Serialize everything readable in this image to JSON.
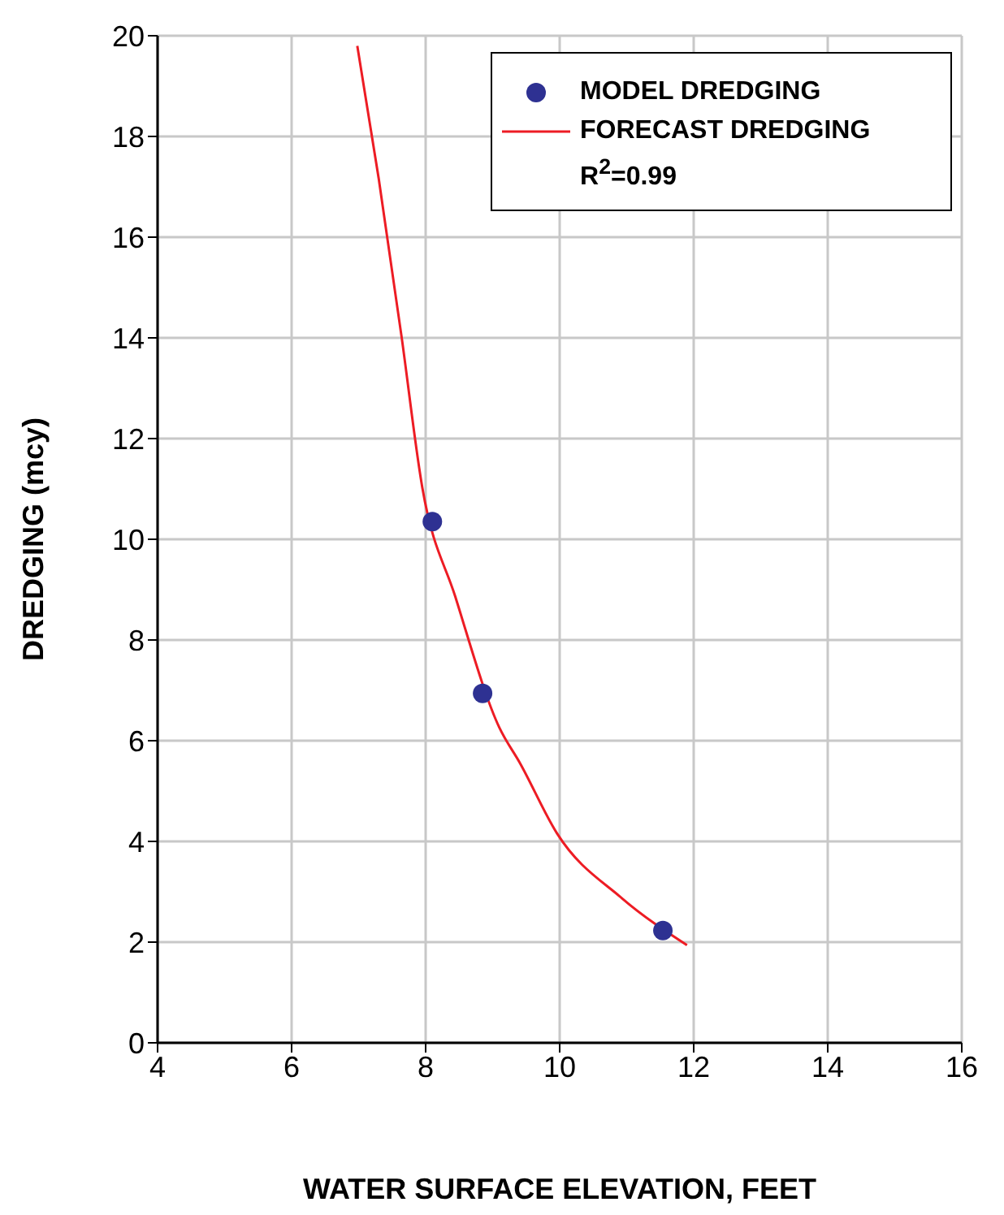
{
  "chart_data": {
    "type": "scatter",
    "xlabel": "WATER SURFACE ELEVATION, FEET",
    "ylabel": "DREDGING (mcy)",
    "xlim": [
      4,
      16
    ],
    "xticks": [
      4,
      6,
      8,
      10,
      12,
      14,
      16
    ],
    "ylim": [
      0,
      20
    ],
    "yticks": [
      0,
      2,
      4,
      6,
      8,
      10,
      12,
      14,
      16,
      18,
      20
    ],
    "grid": true,
    "legend": "top right",
    "annotations": [
      "R$^{2}$=0.99"
    ],
    "series": [
      {
        "name": "MODEL DREDGING",
        "color": "#2e3192",
        "marker": "circle",
        "x": [
          8.1,
          8.85,
          11.54
        ],
        "values": [
          10.35,
          6.94,
          2.23
        ]
      },
      {
        "name": "FORECAST DREDGING",
        "type": "line",
        "color": "#ed1c24",
        "marker": "none",
        "line_style": "solid",
        "x": [
          6.98,
          7.3,
          7.64,
          7.95,
          8.44,
          9.1,
          9.41,
          9.96,
          10.93,
          11.9
        ],
        "values": [
          19.8,
          17.16,
          14.03,
          11.03,
          8.87,
          6.26,
          5.55,
          4.16,
          2.87,
          1.94
        ]
      }
    ]
  }
}
